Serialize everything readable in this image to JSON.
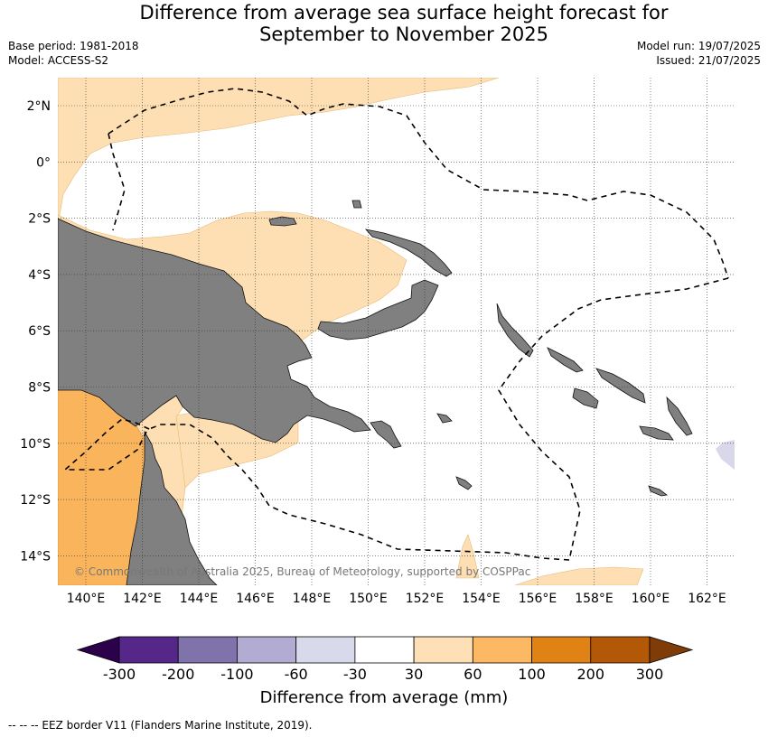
{
  "title": {
    "line1": "Difference from average sea surface height forecast for",
    "line2": "September to November 2025"
  },
  "meta": {
    "base_period": "Base period: 1981-2018",
    "model": "Model: ACCESS-S2",
    "model_run": "Model run: 19/07/2025",
    "issued": "Issued: 21/07/2025"
  },
  "map": {
    "lat_labels": [
      "2°N",
      "0°",
      "2°S",
      "4°S",
      "6°S",
      "8°S",
      "10°S",
      "12°S",
      "14°S"
    ],
    "lon_labels": [
      "140°E",
      "142°E",
      "144°E",
      "146°E",
      "148°E",
      "150°E",
      "152°E",
      "154°E",
      "156°E",
      "158°E",
      "160°E",
      "162°E"
    ],
    "copyright": "© Commonwealth of Australia 2025, Bureau of Meteorology, supported by COSPPac",
    "colors": {
      "land": "#808080",
      "ocean_neutral": "#ffffff",
      "light_orange": "#fddfb3",
      "mid_orange": "#f9b45c",
      "light_purple": "#d8d8ea"
    }
  },
  "colorbar": {
    "ticks": [
      "-300",
      "-200",
      "-100",
      "-60",
      "-30",
      "30",
      "60",
      "100",
      "200",
      "300"
    ],
    "colors": [
      "#2d004b",
      "#542788",
      "#8073ac",
      "#b2abd2",
      "#d8daeb",
      "#ffffff",
      "#fee0b6",
      "#fdb863",
      "#e08214",
      "#b35806",
      "#7f3b08"
    ],
    "title": "Difference from average (mm)"
  },
  "footnote": "--  --  -- EEZ border V11 (Flanders Marine Institute, 2019)."
}
